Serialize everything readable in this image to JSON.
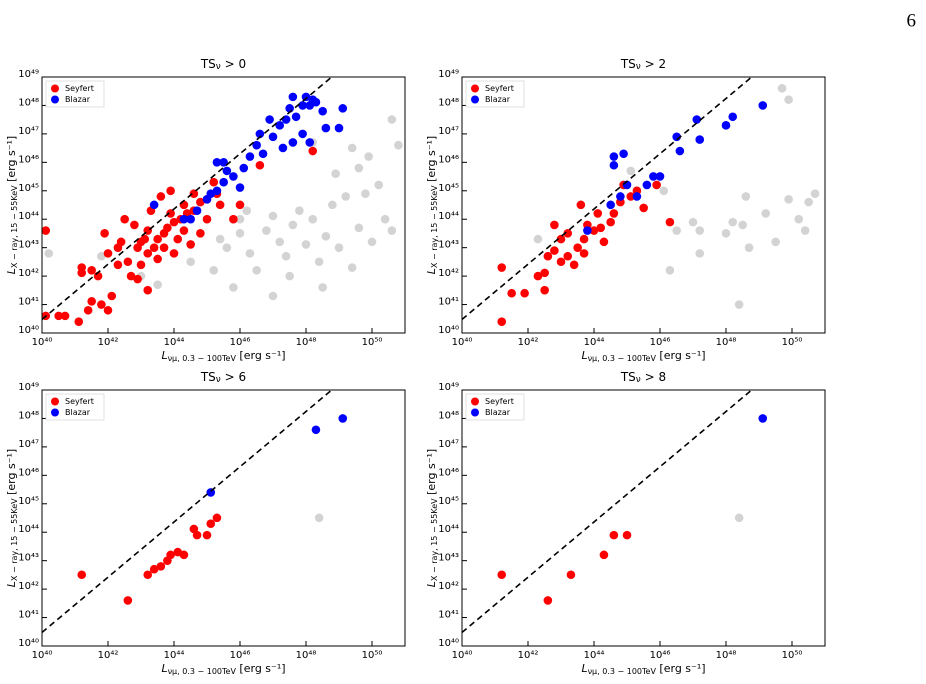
{
  "page_number": "6",
  "chart_data": [
    {
      "type": "scatter",
      "title": {
        "text": "TS",
        "subscript": "ν",
        "rest": " > 0"
      },
      "x_label": {
        "symbol": "L",
        "subscript": "νμ, 0.3 − 100TeV",
        "unit": " [erg s⁻¹]"
      },
      "y_label": {
        "symbol": "L",
        "subscript": "X − ray, 15 − 55KeV",
        "unit": " [erg s⁻¹]"
      },
      "xscale": "log",
      "yscale": "log",
      "xlim": [
        1e+40,
        1e+51
      ],
      "ylim": [
        1e+40,
        1e+49
      ],
      "xticks": [
        {
          "value": 1e+40,
          "label": "10⁴⁰"
        },
        {
          "value": 1e+42,
          "label": "10⁴²"
        },
        {
          "value": 1e+44,
          "label": "10⁴⁴"
        },
        {
          "value": 1e+46,
          "label": "10⁴⁶"
        },
        {
          "value": 1e+48,
          "label": "10⁴⁸"
        },
        {
          "value": 1e+50,
          "label": "10⁵⁰"
        }
      ],
      "yticks": [
        {
          "value": 1e+40,
          "label": "10⁴⁰"
        },
        {
          "value": 1e+41,
          "label": "10⁴¹"
        },
        {
          "value": 1e+42,
          "label": "10⁴²"
        },
        {
          "value": 1e+43,
          "label": "10⁴³"
        },
        {
          "value": 1e+44,
          "label": "10⁴⁴"
        },
        {
          "value": 1e+45,
          "label": "10⁴⁵"
        },
        {
          "value": 1e+46,
          "label": "10⁴⁶"
        },
        {
          "value": 1e+47,
          "label": "10⁴⁷"
        },
        {
          "value": 1e+48,
          "label": "10⁴⁸"
        },
        {
          "value": 1e+49,
          "label": "10⁴⁹"
        }
      ],
      "legend": "upper left",
      "fit_line": {
        "x": [
          1e+40,
          6e+48
        ],
        "y": [
          3e+40,
          1e+49
        ],
        "color": "#000000"
      },
      "series": [
        {
          "color": "#d3d3d3",
          "x": [
            1.6e+40,
            6.3e+41,
            1e+43,
            3.2e+43,
            3.2e+44,
            1.6e+45,
            4e+45,
            1e+46,
            2e+46,
            3.2e+46,
            6.3e+46,
            1e+47,
            1.6e+47,
            2.5e+47,
            4e+47,
            6.3e+47,
            1e+48,
            1.6e+48,
            2.5e+48,
            4e+48,
            6.3e+48,
            1e+49,
            1.6e+49,
            2.5e+49,
            4e+49,
            6.3e+49,
            1e+50,
            1.6e+50,
            2.5e+50,
            4e+50,
            2.5e+49,
            4e+49,
            4e+50,
            6.3e+50,
            7.9e+48,
            3.2e+47,
            1.6e+46,
            6.3e+45,
            3.2e+48,
            1e+47,
            1.6e+48,
            7.9e+49,
            1e+46,
            2.5e+45
          ],
          "values": [
            6.3e+42,
            5e+42,
            1e+42,
            5e+41,
            3.2e+42,
            1.6e+42,
            1e+43,
            3.2e+43,
            6.3e+42,
            1.6e+42,
            4e+43,
            1.3e+44,
            1.6e+43,
            5e+42,
            6.3e+43,
            2e+44,
            1.3e+43,
            1e+44,
            3.2e+42,
            2.5e+43,
            3.2e+44,
            1e+43,
            6.3e+44,
            2e+42,
            5e+43,
            7.9e+44,
            1.6e+43,
            1.6e+45,
            1e+44,
            4e+43,
            3.2e+46,
            6.3e+45,
            3.2e+47,
            4e+46,
            4e+45,
            1e+42,
            2e+44,
            4e+41,
            4e+41,
            2e+41,
            5e+46,
            1.6e+46,
            1e+44,
            2e+43
          ]
        },
        {
          "name": "Seyfert",
          "color": "#ff0000",
          "x": [
            1.3e+40,
            3.2e+40,
            5e+40,
            1.3e+41,
            1.3e+40,
            1.6e+41,
            1.6e+41,
            3.2e+41,
            5e+41,
            3.2e+41,
            6.3e+41,
            2.5e+41,
            1e+42,
            1.3e+42,
            7.9e+41,
            2e+42,
            4e+42,
            7.9e+42,
            1e+43,
            1.6e+43,
            2.5e+43,
            3.2e+43,
            5e+43,
            6.3e+43,
            1e+44,
            1.6e+44,
            2.5e+44,
            4e+44,
            6.3e+44,
            1e+45,
            2e+45,
            2e+43,
            4e+43,
            1.6e+43,
            1e+43,
            6.3e+42,
            3.2e+42,
            2.5e+42,
            5e+42,
            7.9e+42,
            1.6e+43,
            1e+44,
            3.2e+44,
            6.3e+44,
            1e+45,
            1.6e+45,
            2.5e+45,
            2e+44,
            7.9e+43,
            3.2e+43,
            2e+44,
            1e+42,
            2e+42,
            7.9e+43,
            4e+44,
            6.3e+45,
            1e+46,
            4e+46,
            1.6e+48,
            1.3e+43,
            5e+43,
            1.3e+44
          ],
          "values": [
            4e+40,
            4e+40,
            4e+40,
            2.5e+40,
            4e+43,
            2e+42,
            1.3e+42,
            1.6e+42,
            1e+42,
            1.3e+41,
            1e+41,
            6.3e+40,
            6.3e+40,
            2e+41,
            3.2e+43,
            2.5e+42,
            3.2e+42,
            1e+43,
            2.5e+42,
            6.3e+42,
            1e+43,
            2e+43,
            3.2e+43,
            5e+43,
            7.9e+43,
            1e+44,
            1.6e+44,
            2e+44,
            4e+44,
            5e+44,
            7.9e+44,
            2e+44,
            6.3e+44,
            4e+43,
            1.6e+43,
            6.3e+43,
            1e+44,
            1.6e+43,
            1e+42,
            7.9e+41,
            3.2e+41,
            6.3e+42,
            1.3e+43,
            3.2e+43,
            1e+44,
            2e+45,
            3.2e+44,
            3.2e+44,
            1.6e+44,
            4e+42,
            4e+43,
            6.3e+42,
            1e+43,
            1e+45,
            7.9e+44,
            1e+44,
            3.2e+44,
            7.9e+45,
            2.5e+46,
            2e+43,
            1e+43,
            2e+43
          ]
        },
        {
          "name": "Blazar",
          "color": "#0000ff",
          "x": [
            3.2e+44,
            5e+44,
            1e+45,
            2e+45,
            3.2e+45,
            3.2e+45,
            6.3e+45,
            1e+46,
            1.3e+46,
            2e+46,
            3.2e+46,
            4e+46,
            7.9e+46,
            1e+47,
            1.6e+47,
            2.5e+47,
            3.2e+47,
            5e+47,
            7.9e+47,
            1e+48,
            1.3e+48,
            2e+48,
            3.2e+48,
            4e+48,
            7.9e+47,
            1.3e+48,
            4e+47,
            5e+46,
            2e+45,
            4e+45,
            4e+47,
            1.6e+48,
            1.3e+49,
            1e+49,
            2.5e+43,
            2e+44,
            1.3e+45,
            2e+47
          ],
          "values": [
            1e+44,
            2e+44,
            5e+44,
            1e+45,
            2e+45,
            1e+46,
            3.2e+45,
            1.3e+45,
            6.3e+45,
            1.6e+46,
            4e+46,
            1e+47,
            3.2e+47,
            7.9e+46,
            2e+47,
            3.2e+47,
            7.9e+47,
            4e+47,
            1e+48,
            2e+48,
            1e+48,
            1.3e+48,
            6.3e+47,
            1.6e+47,
            1e+47,
            5e+46,
            5e+46,
            2e+46,
            1e+46,
            5e+45,
            2e+48,
            1.6e+48,
            7.9e+47,
            1.6e+47,
            3.2e+44,
            1e+44,
            7.9e+44,
            3.2e+46
          ]
        }
      ]
    },
    {
      "type": "scatter",
      "title": {
        "text": "TS",
        "subscript": "ν",
        "rest": " > 2"
      },
      "x_label": {
        "symbol": "L",
        "subscript": "νμ, 0.3 − 100TeV",
        "unit": " [erg s⁻¹]"
      },
      "y_label": {
        "symbol": "L",
        "subscript": "X − ray, 15 − 55KeV",
        "unit": " [erg s⁻¹]"
      },
      "xscale": "log",
      "yscale": "log",
      "xlim": [
        1e+40,
        1e+51
      ],
      "ylim": [
        1e+40,
        1e+49
      ],
      "xticks": [
        {
          "value": 1e+40,
          "label": "10⁴⁰"
        },
        {
          "value": 1e+42,
          "label": "10⁴²"
        },
        {
          "value": 1e+44,
          "label": "10⁴⁴"
        },
        {
          "value": 1e+46,
          "label": "10⁴⁶"
        },
        {
          "value": 1e+48,
          "label": "10⁴⁸"
        },
        {
          "value": 1e+50,
          "label": "10⁵⁰"
        }
      ],
      "yticks": [
        {
          "value": 1e+40,
          "label": "10⁴⁰"
        },
        {
          "value": 1e+41,
          "label": "10⁴¹"
        },
        {
          "value": 1e+42,
          "label": "10⁴²"
        },
        {
          "value": 1e+43,
          "label": "10⁴³"
        },
        {
          "value": 1e+44,
          "label": "10⁴⁴"
        },
        {
          "value": 1e+45,
          "label": "10⁴⁵"
        },
        {
          "value": 1e+46,
          "label": "10⁴⁶"
        },
        {
          "value": 1e+47,
          "label": "10⁴⁷"
        },
        {
          "value": 1e+48,
          "label": "10⁴⁸"
        },
        {
          "value": 1e+49,
          "label": "10⁴⁹"
        }
      ],
      "legend": "upper left",
      "fit_line": {
        "x": [
          1e+40,
          6e+48
        ],
        "y": [
          3e+40,
          1e+49
        ],
        "color": "#000000"
      },
      "series": [
        {
          "color": "#d3d3d3",
          "x": [
            2e+42,
            6.3e+44,
            1.3e+45,
            1.3e+46,
            3.2e+46,
            2e+46,
            1e+47,
            1.6e+47,
            1e+48,
            1.6e+48,
            3.2e+48,
            5e+48,
            2.5e+48,
            1.6e+49,
            3.2e+49,
            7.9e+49,
            1.6e+50,
            2.5e+50,
            5e+50,
            3.2e+50,
            7.9e+49,
            5e+49,
            4e+48,
            1.6e+47
          ],
          "values": [
            2e+43,
            4e+44,
            5e+45,
            1e+45,
            4e+43,
            1.6e+42,
            7.9e+43,
            4e+43,
            3.2e+43,
            7.9e+43,
            6.3e+43,
            1e+43,
            1e+41,
            1.6e+44,
            1.6e+43,
            5e+44,
            1e+44,
            4e+43,
            7.9e+44,
            4e+44,
            1.6e+48,
            4e+48,
            6.3e+44,
            6.3e+42
          ]
        },
        {
          "name": "Seyfert",
          "color": "#ff0000",
          "x": [
            1.6e+41,
            1.6e+41,
            3.2e+41,
            7.9e+41,
            2e+42,
            3.2e+42,
            4e+42,
            3.2e+42,
            1e+43,
            6.3e+42,
            1e+43,
            1.6e+43,
            3.2e+43,
            5e+43,
            1e+44,
            1.6e+43,
            5e+43,
            1.6e+44,
            3.2e+44,
            4e+44,
            6.3e+44,
            1.3e+45,
            2e+45,
            3.2e+45,
            7.9e+45,
            4e+43,
            2e+44,
            6.3e+43,
            1.3e+44,
            2e+46,
            7.9e+44,
            6.3e+42,
            2.5e+43
          ],
          "values": [
            2.5e+40,
            2e+42,
            2.5e+41,
            2.5e+41,
            1e+42,
            1.3e+42,
            5e+42,
            3.2e+41,
            3.2e+42,
            7.9e+42,
            2e+43,
            5e+42,
            1e+43,
            2e+43,
            4e+43,
            3.2e+43,
            6.3e+42,
            5e+43,
            7.9e+43,
            1.6e+44,
            4e+44,
            6.3e+44,
            1e+45,
            2.5e+44,
            1.6e+45,
            3.2e+44,
            1.6e+43,
            6.3e+43,
            1.6e+44,
            7.9e+43,
            1.6e+45,
            6.3e+43,
            2.5e+42
          ]
        },
        {
          "name": "Blazar",
          "color": "#0000ff",
          "x": [
            6.3e+43,
            3.2e+44,
            6.3e+44,
            4e+44,
            7.9e+44,
            1e+45,
            2e+45,
            4e+45,
            6.3e+45,
            1e+46,
            3.2e+46,
            4e+46,
            1.3e+47,
            1.6e+47,
            1e+48,
            1.6e+48,
            1.3e+49,
            4e+44
          ],
          "values": [
            4e+43,
            3.2e+44,
            6.3e+44,
            7.9e+45,
            2e+46,
            1.6e+45,
            6.3e+44,
            1.6e+45,
            3.2e+45,
            3.2e+45,
            7.9e+46,
            2.5e+46,
            3.2e+47,
            6.3e+46,
            2e+47,
            4e+47,
            1e+48,
            1.6e+46
          ]
        }
      ]
    },
    {
      "type": "scatter",
      "title": {
        "text": "TS",
        "subscript": "ν",
        "rest": " > 6"
      },
      "x_label": {
        "symbol": "L",
        "subscript": "νμ, 0.3 − 100TeV",
        "unit": " [erg s⁻¹]"
      },
      "y_label": {
        "symbol": "L",
        "subscript": "X − ray, 15 − 55KeV",
        "unit": " [erg s⁻¹]"
      },
      "xscale": "log",
      "yscale": "log",
      "xlim": [
        1e+40,
        1e+51
      ],
      "ylim": [
        1e+40,
        1e+49
      ],
      "xticks": [
        {
          "value": 1e+40,
          "label": "10⁴⁰"
        },
        {
          "value": 1e+42,
          "label": "10⁴²"
        },
        {
          "value": 1e+44,
          "label": "10⁴⁴"
        },
        {
          "value": 1e+46,
          "label": "10⁴⁶"
        },
        {
          "value": 1e+48,
          "label": "10⁴⁸"
        },
        {
          "value": 1e+50,
          "label": "10⁵⁰"
        }
      ],
      "yticks": [
        {
          "value": 1e+40,
          "label": "10⁴⁰"
        },
        {
          "value": 1e+41,
          "label": "10⁴¹"
        },
        {
          "value": 1e+42,
          "label": "10⁴²"
        },
        {
          "value": 1e+43,
          "label": "10⁴³"
        },
        {
          "value": 1e+44,
          "label": "10⁴⁴"
        },
        {
          "value": 1e+45,
          "label": "10⁴⁵"
        },
        {
          "value": 1e+46,
          "label": "10⁴⁶"
        },
        {
          "value": 1e+47,
          "label": "10⁴⁷"
        },
        {
          "value": 1e+48,
          "label": "10⁴⁸"
        },
        {
          "value": 1e+49,
          "label": "10⁴⁹"
        }
      ],
      "legend": "upper left",
      "fit_line": {
        "x": [
          1e+40,
          6e+48
        ],
        "y": [
          3e+40,
          1e+49
        ],
        "color": "#000000"
      },
      "series": [
        {
          "color": "#d3d3d3",
          "x": [
            2.5e+48
          ],
          "values": [
            3.2e+44
          ]
        },
        {
          "name": "Seyfert",
          "color": "#ff0000",
          "x": [
            1.6e+41,
            4e+42,
            1.6e+43,
            2.5e+43,
            4e+43,
            6.3e+43,
            7.9e+43,
            1.3e+44,
            2e+44,
            4e+44,
            5e+44,
            1e+45,
            1.3e+45,
            2e+45
          ],
          "values": [
            3.2e+42,
            4e+41,
            3.2e+42,
            5e+42,
            6.3e+42,
            1e+43,
            1.6e+43,
            2e+43,
            1.6e+43,
            1.3e+44,
            7.9e+43,
            7.9e+43,
            2e+44,
            3.2e+44
          ]
        },
        {
          "name": "Blazar",
          "color": "#0000ff",
          "x": [
            1.3e+45,
            2e+48,
            1.3e+49
          ],
          "values": [
            2.5e+45,
            4e+47,
            1e+48
          ]
        }
      ]
    },
    {
      "type": "scatter",
      "title": {
        "text": "TS",
        "subscript": "ν",
        "rest": " > 8"
      },
      "x_label": {
        "symbol": "L",
        "subscript": "νμ, 0.3 − 100TeV",
        "unit": " [erg s⁻¹]"
      },
      "y_label": {
        "symbol": "L",
        "subscript": "X − ray, 15 − 55KeV",
        "unit": " [erg s⁻¹]"
      },
      "xscale": "log",
      "yscale": "log",
      "xlim": [
        1e+40,
        1e+51
      ],
      "ylim": [
        1e+40,
        1e+49
      ],
      "xticks": [
        {
          "value": 1e+40,
          "label": "10⁴⁰"
        },
        {
          "value": 1e+42,
          "label": "10⁴²"
        },
        {
          "value": 1e+44,
          "label": "10⁴⁴"
        },
        {
          "value": 1e+46,
          "label": "10⁴⁶"
        },
        {
          "value": 1e+48,
          "label": "10⁴⁸"
        },
        {
          "value": 1e+50,
          "label": "10⁵⁰"
        }
      ],
      "yticks": [
        {
          "value": 1e+40,
          "label": "10⁴⁰"
        },
        {
          "value": 1e+41,
          "label": "10⁴¹"
        },
        {
          "value": 1e+42,
          "label": "10⁴²"
        },
        {
          "value": 1e+43,
          "label": "10⁴³"
        },
        {
          "value": 1e+44,
          "label": "10⁴⁴"
        },
        {
          "value": 1e+45,
          "label": "10⁴⁵"
        },
        {
          "value": 1e+46,
          "label": "10⁴⁶"
        },
        {
          "value": 1e+47,
          "label": "10⁴⁷"
        },
        {
          "value": 1e+48,
          "label": "10⁴⁸"
        },
        {
          "value": 1e+49,
          "label": "10⁴⁹"
        }
      ],
      "legend": "upper left",
      "fit_line": {
        "x": [
          1e+40,
          6e+48
        ],
        "y": [
          3e+40,
          1e+49
        ],
        "color": "#000000"
      },
      "series": [
        {
          "color": "#d3d3d3",
          "x": [
            2.5e+48
          ],
          "values": [
            3.2e+44
          ]
        },
        {
          "name": "Seyfert",
          "color": "#ff0000",
          "x": [
            1.6e+41,
            4e+42,
            2e+43,
            2e+44,
            4e+44,
            1e+45
          ],
          "values": [
            3.2e+42,
            4e+41,
            3.2e+42,
            1.6e+43,
            7.9e+43,
            7.9e+43
          ]
        },
        {
          "name": "Blazar",
          "color": "#0000ff",
          "x": [
            1.3e+49
          ],
          "values": [
            1e+48
          ]
        }
      ]
    }
  ]
}
